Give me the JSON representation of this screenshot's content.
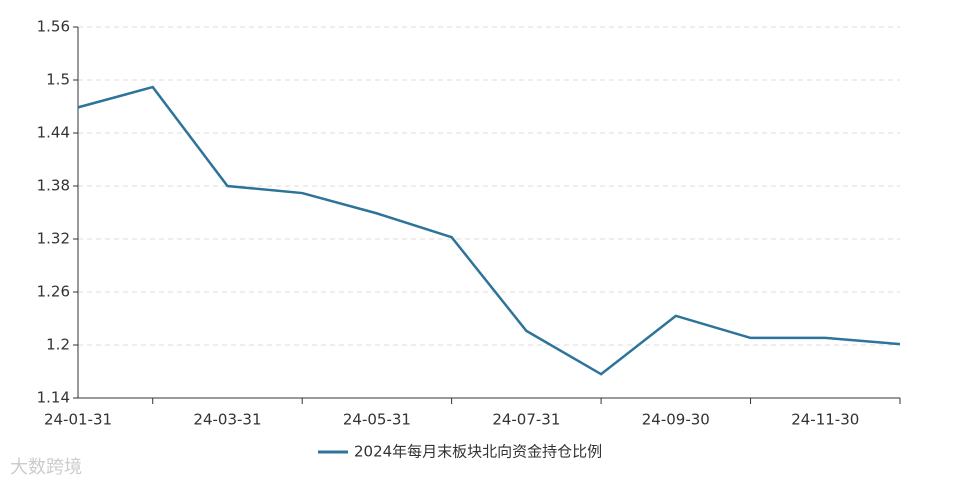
{
  "chart_data": {
    "type": "line",
    "categories": [
      "24-01-31",
      null,
      "24-03-31",
      null,
      "24-05-31",
      null,
      "24-07-31",
      null,
      "24-09-30",
      null,
      "24-11-30",
      null
    ],
    "series": [
      {
        "name": "2024年每月末板块北向资金持仓比例",
        "color": "#2e7399",
        "values": [
          1.469,
          1.492,
          1.38,
          1.372,
          1.349,
          1.322,
          1.216,
          1.167,
          1.233,
          1.208,
          1.208,
          1.201
        ]
      }
    ],
    "ylim": [
      1.14,
      1.56
    ],
    "yticks": [
      1.14,
      1.2,
      1.26,
      1.32,
      1.38,
      1.44,
      1.5,
      1.56
    ],
    "grid": true,
    "legend": "bottom",
    "watermark": "大数跨境"
  }
}
